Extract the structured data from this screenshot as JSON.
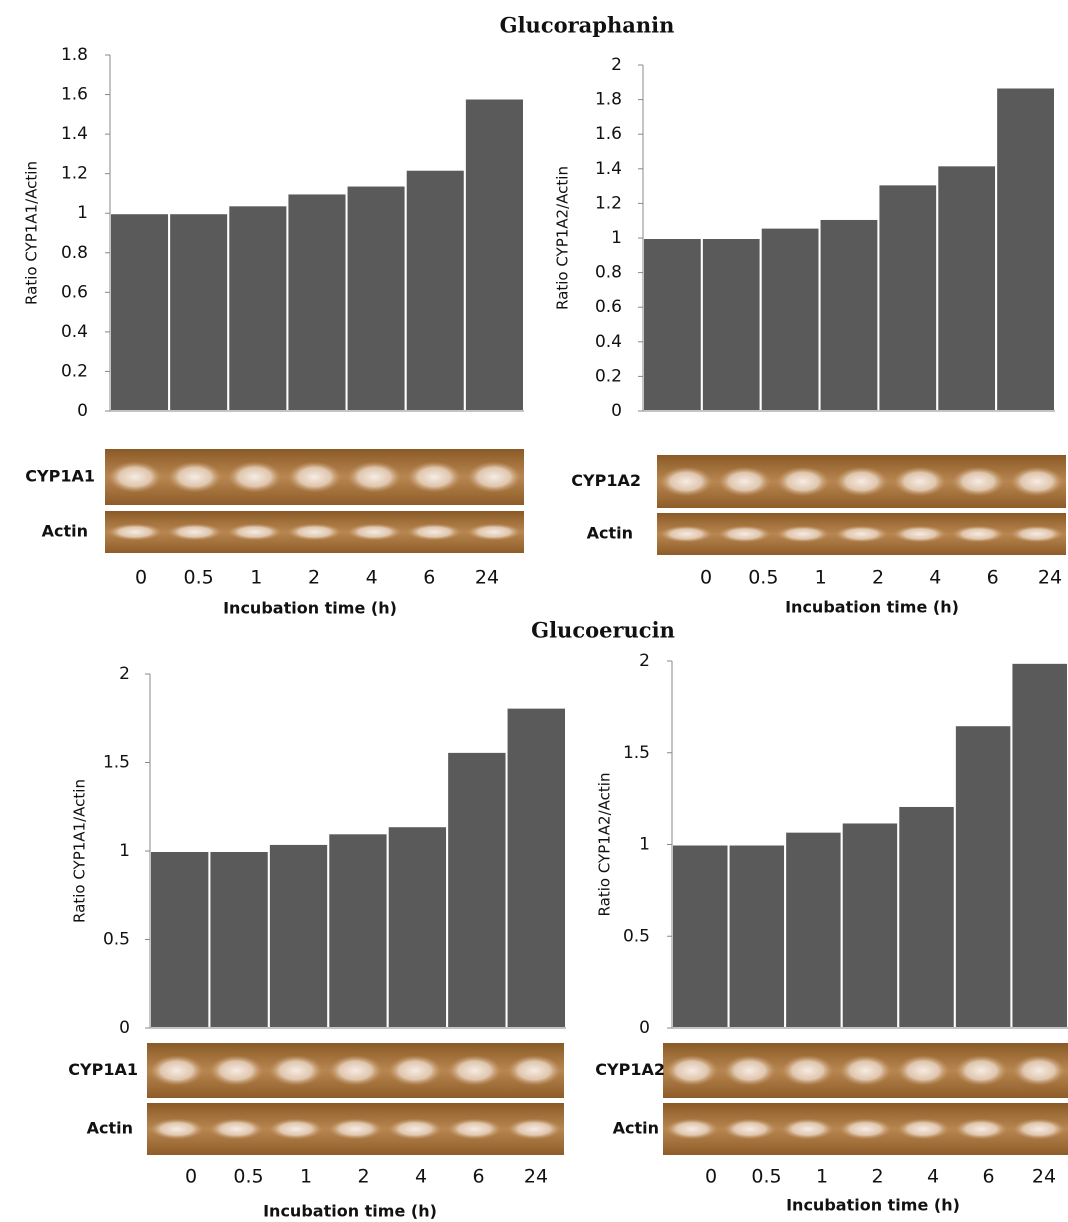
{
  "headings": [
    "Glucoraphanin",
    "Glucoerucin"
  ],
  "chart_data": [
    {
      "type": "bar",
      "ylabel": "Ratio CYP1A1/Actin",
      "xlabel": "Incubation time (h)",
      "categories": [
        "0",
        "0.5",
        "1",
        "2",
        "4",
        "6",
        "24"
      ],
      "values": [
        1,
        1,
        1.04,
        1.1,
        1.14,
        1.22,
        1.58
      ],
      "color": "#5a5a5a",
      "ylim": [
        0,
        1.8
      ],
      "yticks": [
        0,
        0.2,
        0.4,
        0.6,
        0.8,
        1,
        1.2,
        1.4,
        1.6,
        1.8
      ],
      "blot_labels": [
        "CYP1A1",
        "Actin"
      ]
    },
    {
      "type": "bar",
      "ylabel": "Ratio CYP1A2/Actin",
      "xlabel": "Incubation time (h)",
      "categories": [
        "0",
        "0.5",
        "1",
        "2",
        "4",
        "6",
        "24"
      ],
      "values": [
        1,
        1,
        1.06,
        1.11,
        1.31,
        1.42,
        1.87
      ],
      "color": "#5a5a5a",
      "ylim": [
        0,
        2
      ],
      "yticks": [
        0,
        0.2,
        0.4,
        0.6,
        0.8,
        1,
        1.2,
        1.4,
        1.6,
        1.8,
        2
      ],
      "blot_labels": [
        "CYP1A2",
        "Actin"
      ]
    },
    {
      "type": "bar",
      "ylabel": "Ratio CYP1A1/Actin",
      "xlabel": "Incubation time (h)",
      "categories": [
        "0",
        "0.5",
        "1",
        "2",
        "4",
        "6",
        "24"
      ],
      "values": [
        1,
        1,
        1.04,
        1.1,
        1.14,
        1.56,
        1.81
      ],
      "color": "#5a5a5a",
      "ylim": [
        0,
        2
      ],
      "yticks": [
        0,
        0.5,
        1,
        1.5,
        2
      ],
      "blot_labels": [
        "CYP1A1",
        "Actin"
      ]
    },
    {
      "type": "bar",
      "ylabel": "Ratio CYP1A2/Actin",
      "xlabel": "Incubation time (h)",
      "categories": [
        "0",
        "0.5",
        "1",
        "2",
        "4",
        "6",
        "24"
      ],
      "values": [
        1,
        1,
        1.07,
        1.12,
        1.21,
        1.65,
        1.99
      ],
      "color": "#5a5a5a",
      "ylim": [
        0,
        2
      ],
      "yticks": [
        0,
        0.5,
        1,
        1.5,
        2
      ],
      "blot_labels": [
        "CYP1A2",
        "Actin"
      ]
    }
  ]
}
